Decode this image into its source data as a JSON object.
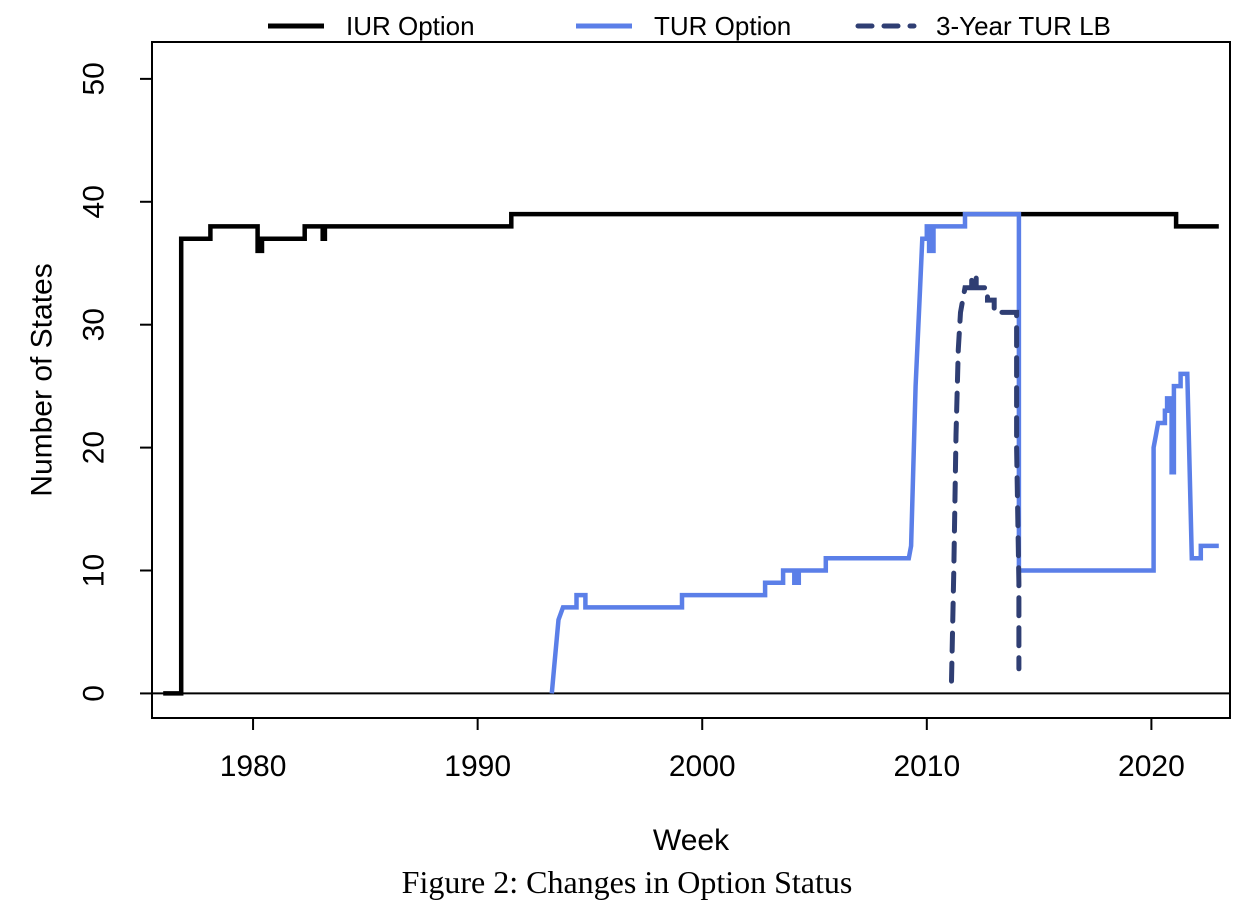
{
  "caption": "Figure 2: Changes in Option Status",
  "chart_data": {
    "type": "line",
    "xlabel": "Week",
    "ylabel": "Number of States",
    "xlim": [
      1975.5,
      2023.5
    ],
    "ylim": [
      -2,
      53
    ],
    "xticks": [
      1980,
      1990,
      2000,
      2010,
      2020
    ],
    "yticks": [
      0,
      10,
      20,
      30,
      40,
      50
    ],
    "reference_line_y": 0,
    "legend_position": "top (outside plot box)",
    "series": [
      {
        "name": "IUR Option",
        "color": "#000000",
        "style": "solid",
        "step": true,
        "points": [
          [
            1976.0,
            0
          ],
          [
            1976.8,
            0
          ],
          [
            1976.8,
            37
          ],
          [
            1978.1,
            37
          ],
          [
            1978.1,
            38
          ],
          [
            1980.2,
            38
          ],
          [
            1980.2,
            36
          ],
          [
            1980.4,
            36
          ],
          [
            1980.4,
            37
          ],
          [
            1982.3,
            37
          ],
          [
            1982.3,
            38
          ],
          [
            1983.1,
            38
          ],
          [
            1983.1,
            37
          ],
          [
            1983.2,
            37
          ],
          [
            1983.2,
            38
          ],
          [
            1991.5,
            38
          ],
          [
            1991.5,
            39
          ],
          [
            2021.1,
            39
          ],
          [
            2021.1,
            38
          ],
          [
            2023.0,
            38
          ]
        ]
      },
      {
        "name": "TUR Option",
        "color": "#5b7fe8",
        "style": "solid",
        "step": true,
        "points": [
          [
            1993.3,
            0
          ],
          [
            1993.4,
            2
          ],
          [
            1993.6,
            6
          ],
          [
            1993.8,
            7
          ],
          [
            1994.4,
            7
          ],
          [
            1994.4,
            8
          ],
          [
            1994.8,
            8
          ],
          [
            1994.8,
            7
          ],
          [
            1999.1,
            7
          ],
          [
            1999.1,
            8
          ],
          [
            2002.8,
            8
          ],
          [
            2002.8,
            9
          ],
          [
            2003.6,
            9
          ],
          [
            2003.6,
            10
          ],
          [
            2004.1,
            10
          ],
          [
            2004.1,
            9
          ],
          [
            2004.3,
            9
          ],
          [
            2004.3,
            10
          ],
          [
            2005.5,
            10
          ],
          [
            2005.5,
            11
          ],
          [
            2009.2,
            11
          ],
          [
            2009.3,
            12
          ],
          [
            2009.5,
            25
          ],
          [
            2009.7,
            33
          ],
          [
            2009.8,
            37
          ],
          [
            2010.0,
            37
          ],
          [
            2010.0,
            38
          ],
          [
            2010.1,
            38
          ],
          [
            2010.1,
            36
          ],
          [
            2010.3,
            36
          ],
          [
            2010.3,
            38
          ],
          [
            2011.7,
            38
          ],
          [
            2011.7,
            39
          ],
          [
            2014.1,
            39
          ],
          [
            2014.1,
            10
          ],
          [
            2020.1,
            10
          ],
          [
            2020.1,
            20
          ],
          [
            2020.2,
            21
          ],
          [
            2020.3,
            22
          ],
          [
            2020.6,
            22
          ],
          [
            2020.6,
            23
          ],
          [
            2020.7,
            23
          ],
          [
            2020.7,
            24
          ],
          [
            2020.9,
            24
          ],
          [
            2020.9,
            18
          ],
          [
            2021.0,
            18
          ],
          [
            2021.0,
            25
          ],
          [
            2021.3,
            25
          ],
          [
            2021.3,
            26
          ],
          [
            2021.6,
            26
          ],
          [
            2021.8,
            11
          ],
          [
            2022.2,
            11
          ],
          [
            2022.2,
            12
          ],
          [
            2023.0,
            12
          ]
        ]
      },
      {
        "name": "3-Year TUR LB",
        "color": "#2f3e73",
        "style": "dashed",
        "step": true,
        "points": [
          [
            2011.1,
            1
          ],
          [
            2011.2,
            10
          ],
          [
            2011.3,
            21
          ],
          [
            2011.4,
            28
          ],
          [
            2011.5,
            31
          ],
          [
            2011.6,
            32
          ],
          [
            2011.7,
            33
          ],
          [
            2012.0,
            33
          ],
          [
            2012.0,
            34
          ],
          [
            2012.2,
            34
          ],
          [
            2012.2,
            33
          ],
          [
            2012.7,
            33
          ],
          [
            2012.7,
            32
          ],
          [
            2013.0,
            32
          ],
          [
            2013.0,
            31
          ],
          [
            2013.2,
            31
          ],
          [
            2013.2,
            31
          ],
          [
            2014.0,
            31
          ],
          [
            2014.0,
            20
          ],
          [
            2014.1,
            9
          ],
          [
            2014.1,
            2
          ]
        ]
      }
    ]
  }
}
